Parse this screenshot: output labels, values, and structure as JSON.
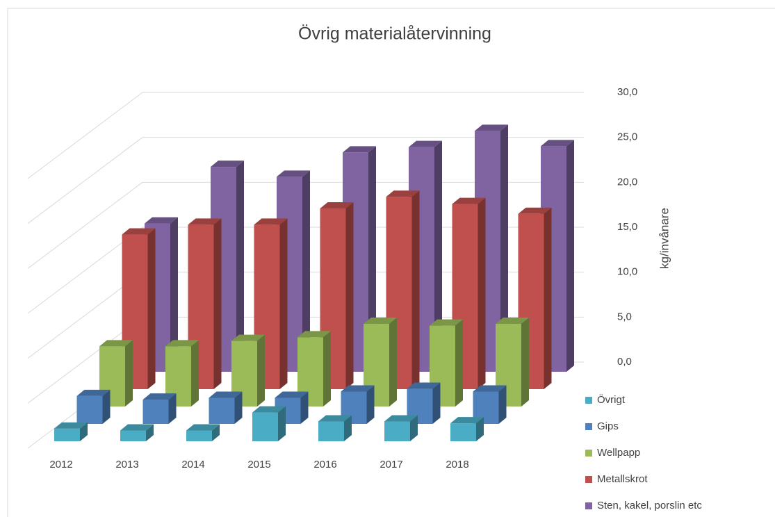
{
  "chart_data": {
    "type": "bar3d",
    "title": "Övrig materialåtervinning",
    "y_axis_label": "kg/invånare",
    "categories": [
      "2012",
      "2013",
      "2014",
      "2015",
      "2016",
      "2017",
      "2018"
    ],
    "series": [
      {
        "name": "Övrigt",
        "color": "#4bacc6",
        "values": [
          1.4,
          1.2,
          1.2,
          3.2,
          2.2,
          2.2,
          2.0
        ]
      },
      {
        "name": "Gips",
        "color": "#4f81bd",
        "values": [
          3.1,
          2.7,
          2.9,
          2.9,
          3.6,
          3.9,
          3.6
        ]
      },
      {
        "name": "Wellpapp",
        "color": "#9bbb59",
        "values": [
          6.7,
          6.7,
          7.3,
          7.7,
          9.2,
          9.0,
          9.2
        ]
      },
      {
        "name": "Metallskrot",
        "color": "#c0504d",
        "values": [
          17.2,
          18.3,
          18.3,
          20.1,
          21.4,
          20.6,
          19.5
        ]
      },
      {
        "name": "Sten, kakel, porslin etc",
        "color": "#8064a2",
        "values": [
          16.5,
          22.8,
          21.7,
          24.4,
          25.0,
          26.8,
          25.1
        ]
      }
    ],
    "ylim": [
      0,
      30
    ],
    "yticks": [
      {
        "value": 0,
        "label": "0,0"
      },
      {
        "value": 5,
        "label": "5,0"
      },
      {
        "value": 10,
        "label": "10,0"
      },
      {
        "value": 15,
        "label": "15,0"
      },
      {
        "value": 20,
        "label": "20,0"
      },
      {
        "value": 25,
        "label": "25,0"
      },
      {
        "value": 30,
        "label": "30,0"
      }
    ],
    "grid": true,
    "legend": "right"
  }
}
